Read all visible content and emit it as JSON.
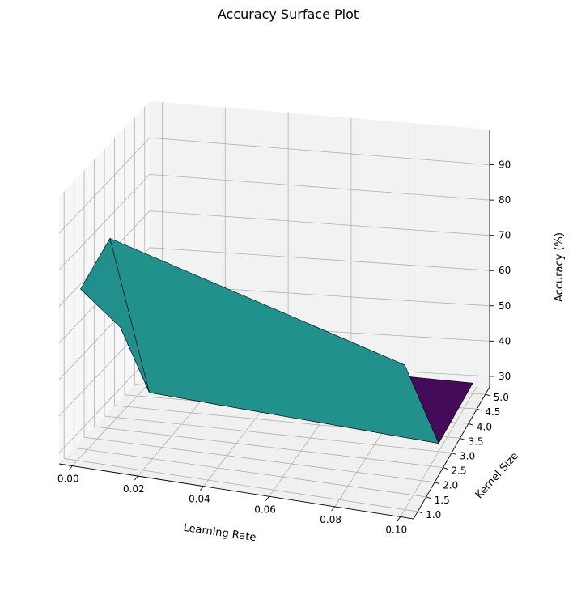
{
  "chart_data": {
    "type": "surface",
    "title": "Accuracy Surface Plot",
    "xlabel": "Learning Rate",
    "ylabel": "Kernel Size",
    "zlabel": "Accuracy (%)",
    "x": [
      0.001,
      0.01,
      0.1
    ],
    "y": [
      1,
      3,
      5
    ],
    "z": [
      [
        75,
        93,
        98
      ],
      [
        52,
        35,
        30
      ],
      [
        55,
        33,
        30
      ]
    ],
    "xlim": [
      -0.004,
      0.104
    ],
    "ylim": [
      0.75,
      5.25
    ],
    "zlim": [
      27,
      100
    ],
    "xticks": [
      "0.00",
      "0.02",
      "0.04",
      "0.06",
      "0.08",
      "0.10"
    ],
    "yticks": [
      "1.0",
      "1.5",
      "2.0",
      "2.5",
      "3.0",
      "3.5",
      "4.0",
      "4.5",
      "5.0"
    ],
    "zticks": [
      "30",
      "40",
      "50",
      "60",
      "70",
      "80",
      "90"
    ],
    "colormap": "viridis",
    "grid": true
  }
}
